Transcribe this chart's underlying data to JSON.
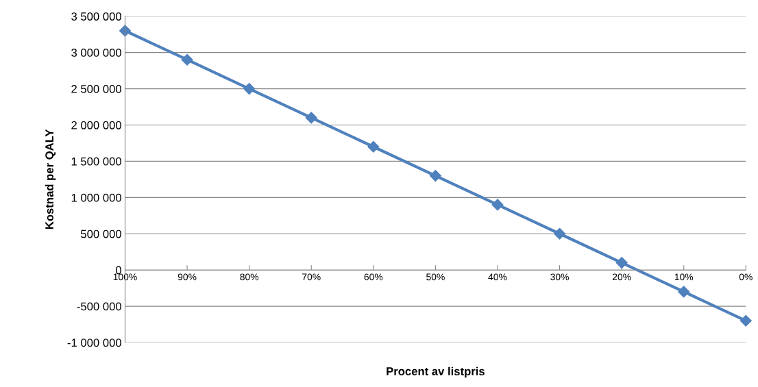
{
  "chart_data": {
    "type": "line",
    "xlabel": "Procent av listpris",
    "ylabel": "Kostnad per QALY",
    "categories": [
      "100%",
      "90%",
      "80%",
      "70%",
      "60%",
      "50%",
      "40%",
      "30%",
      "20%",
      "10%",
      "0%"
    ],
    "series": [
      {
        "color": "#4f81bd",
        "values": [
          3300000,
          2900000,
          2500000,
          2100000,
          1700000,
          1300000,
          900000,
          500000,
          100000,
          -300000,
          -700000
        ]
      }
    ],
    "ylim": [
      -1000000,
      3500000
    ],
    "yticks": [
      {
        "value": -1000000,
        "label": "-1 000 000"
      },
      {
        "value": -500000,
        "label": "-500 000"
      },
      0,
      {
        "value": 500000,
        "label": "500 000"
      },
      {
        "value": 1000000,
        "label": "1 000 000"
      },
      {
        "value": 1500000,
        "label": "1 500 000"
      },
      {
        "value": 2000000,
        "label": "2 000 000"
      },
      {
        "value": 2500000,
        "label": "2 500 000"
      },
      {
        "value": 3000000,
        "label": "3 000 000"
      },
      {
        "value": 3500000,
        "label": "3 500 000"
      }
    ],
    "grid": "y",
    "marker": "diamond",
    "line_style": "solid",
    "legend": false
  }
}
